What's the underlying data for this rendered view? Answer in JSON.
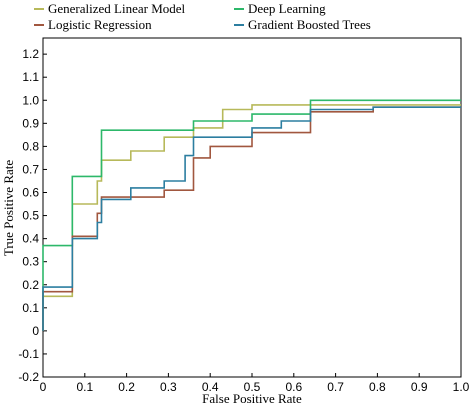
{
  "chart_data": {
    "type": "line",
    "title": "",
    "xlabel": "False Positive Rate",
    "ylabel": "True Positive Rate",
    "xlim": [
      0,
      1.0
    ],
    "ylim": [
      -0.2,
      1.2
    ],
    "x_ticks": [
      0,
      0.1,
      0.2,
      0.3,
      0.4,
      0.5,
      0.6,
      0.7,
      0.8,
      0.9,
      1.0
    ],
    "x_tick_labels": [
      "0",
      "0.1",
      "0.2",
      "0.3",
      "0.4",
      "0.5",
      "0.6",
      "0.7",
      "0.8",
      "0.9",
      "1.0"
    ],
    "y_ticks": [
      -0.2,
      -0.1,
      0,
      0.1,
      0.2,
      0.3,
      0.4,
      0.5,
      0.6,
      0.7,
      0.8,
      0.9,
      1.0,
      1.1,
      1.2
    ],
    "y_tick_labels": [
      "-0.2",
      "-0.1",
      "0",
      "0.1",
      "0.2",
      "0.3",
      "0.4",
      "0.5",
      "0.6",
      "0.7",
      "0.8",
      "0.9",
      "1.0",
      "1.1",
      "1.2"
    ],
    "grid": false,
    "legend_position": "top",
    "series": [
      {
        "name": "Generalized Linear Model",
        "color": "#b7b95a",
        "x": [
          0,
          0,
          0.07,
          0.07,
          0.13,
          0.13,
          0.14,
          0.14,
          0.21,
          0.21,
          0.29,
          0.29,
          0.36,
          0.36,
          0.43,
          0.43,
          0.5,
          0.5,
          0.64,
          0.64,
          0.86,
          0.86,
          1.0
        ],
        "y": [
          0,
          0.15,
          0.15,
          0.55,
          0.55,
          0.65,
          0.65,
          0.74,
          0.74,
          0.78,
          0.78,
          0.84,
          0.84,
          0.88,
          0.88,
          0.96,
          0.96,
          0.98,
          0.98,
          0.98,
          0.98,
          0.98,
          0.98
        ]
      },
      {
        "name": "Deep Learning",
        "color": "#2db86a",
        "x": [
          0,
          0,
          0.07,
          0.07,
          0.14,
          0.14,
          0.36,
          0.36,
          0.5,
          0.5,
          0.64,
          0.64,
          1.0
        ],
        "y": [
          0,
          0.37,
          0.37,
          0.67,
          0.67,
          0.87,
          0.87,
          0.91,
          0.91,
          0.94,
          0.94,
          1.0,
          1.0
        ]
      },
      {
        "name": "Logistic Regression",
        "color": "#a1573f",
        "x": [
          0,
          0,
          0.07,
          0.07,
          0.13,
          0.13,
          0.14,
          0.14,
          0.21,
          0.21,
          0.29,
          0.29,
          0.36,
          0.36,
          0.4,
          0.4,
          0.5,
          0.5,
          0.64,
          0.64,
          0.79,
          0.79,
          1.0
        ],
        "y": [
          0,
          0.17,
          0.17,
          0.41,
          0.41,
          0.51,
          0.51,
          0.58,
          0.58,
          0.58,
          0.58,
          0.61,
          0.61,
          0.75,
          0.75,
          0.8,
          0.8,
          0.86,
          0.86,
          0.95,
          0.95,
          0.97,
          0.97
        ]
      },
      {
        "name": "Gradient Boosted Trees",
        "color": "#2c7ea0",
        "x": [
          0,
          0,
          0.07,
          0.07,
          0.13,
          0.13,
          0.14,
          0.14,
          0.21,
          0.21,
          0.29,
          0.29,
          0.34,
          0.34,
          0.36,
          0.36,
          0.5,
          0.5,
          0.57,
          0.57,
          0.64,
          0.64,
          0.79,
          0.79,
          1.0
        ],
        "y": [
          0,
          0.19,
          0.19,
          0.4,
          0.4,
          0.47,
          0.47,
          0.57,
          0.57,
          0.62,
          0.62,
          0.65,
          0.65,
          0.76,
          0.76,
          0.84,
          0.84,
          0.88,
          0.88,
          0.91,
          0.91,
          0.96,
          0.96,
          0.97,
          0.97
        ]
      }
    ]
  }
}
